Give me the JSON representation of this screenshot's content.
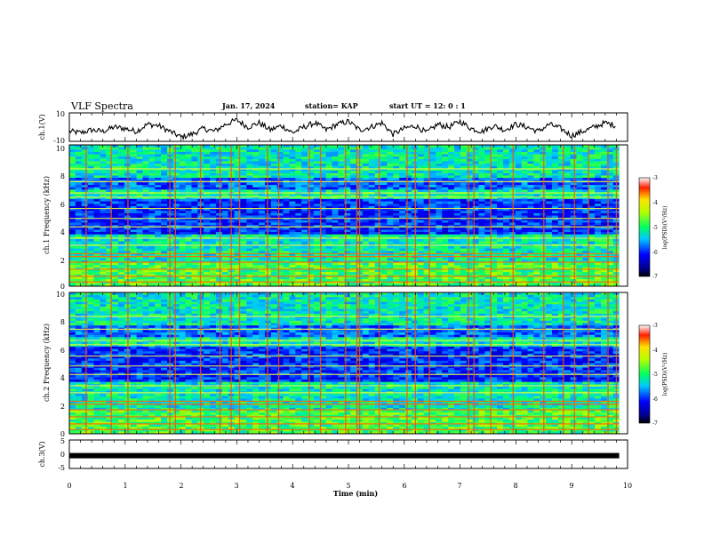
{
  "header": {
    "title": "VLF Spectra",
    "date": "Jan. 17, 2024",
    "station": "station= KAP",
    "start": "start UT =  12: 0  : 1"
  },
  "chart_data": [
    {
      "type": "line",
      "ylabel": "ch.1(V)",
      "ylim": [
        -10,
        10
      ],
      "yticks": [
        "10",
        "-10"
      ],
      "xlim": [
        0,
        10
      ],
      "series": [
        {
          "x": [
            0,
            0.2,
            0.4,
            0.6,
            0.8,
            1.0,
            1.2,
            1.4,
            1.6,
            1.8,
            2.0,
            2.2,
            2.4,
            2.6,
            2.8,
            3.0,
            3.2,
            3.4,
            3.6,
            3.8,
            4.0,
            4.2,
            4.4,
            4.6,
            4.8,
            5.0,
            5.2,
            5.4,
            5.6,
            5.8,
            6.0,
            6.2,
            6.4,
            6.6,
            6.8,
            7.0,
            7.2,
            7.4,
            7.6,
            7.8,
            8.0,
            8.2,
            8.4,
            8.6,
            8.8,
            9.0,
            9.2,
            9.4,
            9.6,
            9.8
          ],
          "values": [
            -3,
            -4,
            -2,
            -3,
            0,
            -1,
            -3,
            2,
            1,
            -3,
            -7,
            -5,
            -1,
            -3,
            2,
            5,
            0,
            3,
            -2,
            1,
            -4,
            0,
            3,
            -2,
            2,
            4,
            -2,
            0,
            3,
            -5,
            -1,
            1,
            -4,
            2,
            0,
            4,
            -1,
            -3,
            1,
            -2,
            2,
            0,
            -3,
            2,
            -1,
            -6,
            -3,
            0,
            3,
            1
          ]
        }
      ]
    },
    {
      "type": "heatmap",
      "ylabel": "ch.1 Frequency (kHz)",
      "ylim": [
        0,
        10
      ],
      "yticks": [
        "0",
        "2",
        "4",
        "6",
        "8",
        "10"
      ],
      "xlim": [
        0,
        9.85
      ],
      "colorbar": {
        "label": "log(PSD)(V²/Hz)",
        "range": [
          -7,
          -3
        ],
        "ticks": [
          "-3",
          "-4",
          "-5",
          "-6",
          "-7"
        ]
      },
      "bands_khz": [
        0.3,
        0.7,
        1.2,
        1.7,
        2.1,
        2.3,
        2.9,
        3.4,
        4.2,
        4.8,
        5.5,
        6.3,
        6.6,
        7.4,
        8.3
      ],
      "bursts_min": [
        0.3,
        0.75,
        1.05,
        1.8,
        1.9,
        2.35,
        2.7,
        2.9,
        3.05,
        3.55,
        3.75,
        4.3,
        4.5,
        4.95,
        5.15,
        5.2,
        5.55,
        6.05,
        6.2,
        6.45,
        7.15,
        7.25,
        7.55,
        7.95,
        8.5,
        8.85,
        9.05,
        9.3,
        9.65,
        9.8
      ]
    },
    {
      "type": "heatmap",
      "ylabel": "ch.2 Frequency (kHz)",
      "ylim": [
        0,
        10
      ],
      "yticks": [
        "0",
        "2",
        "4",
        "6",
        "8",
        "10"
      ],
      "xlim": [
        0,
        9.85
      ],
      "colorbar": {
        "label": "log(PSD)(V²/Hz)",
        "range": [
          -7,
          -3
        ],
        "ticks": [
          "-3",
          "-4",
          "-5",
          "-6",
          "-7"
        ]
      },
      "bands_khz": [
        0.3,
        0.7,
        1.2,
        1.7,
        2.1,
        2.3,
        2.9,
        3.4,
        4.2,
        4.8,
        5.5,
        6.3,
        6.6,
        7.4,
        8.3
      ],
      "bursts_min": [
        0.3,
        0.75,
        1.05,
        1.8,
        1.9,
        2.35,
        2.7,
        2.9,
        3.05,
        3.55,
        3.75,
        4.3,
        4.5,
        4.95,
        5.15,
        5.2,
        5.55,
        6.05,
        6.2,
        6.45,
        7.15,
        7.25,
        7.55,
        7.95,
        8.5,
        8.85,
        9.05,
        9.3,
        9.65,
        9.8
      ]
    },
    {
      "type": "line",
      "ylabel": "ch.3(V)",
      "ylim": [
        -5,
        5
      ],
      "yticks": [
        "5",
        "0",
        "-5"
      ],
      "xlim": [
        0,
        10
      ],
      "xlabel": "Time  (min)",
      "xticks": [
        "0",
        "1",
        "2",
        "3",
        "4",
        "5",
        "6",
        "7",
        "8",
        "9",
        "10"
      ],
      "series": [
        {
          "x": [
            0,
            9.85
          ],
          "values": [
            -0.5,
            -0.5
          ]
        }
      ]
    }
  ]
}
